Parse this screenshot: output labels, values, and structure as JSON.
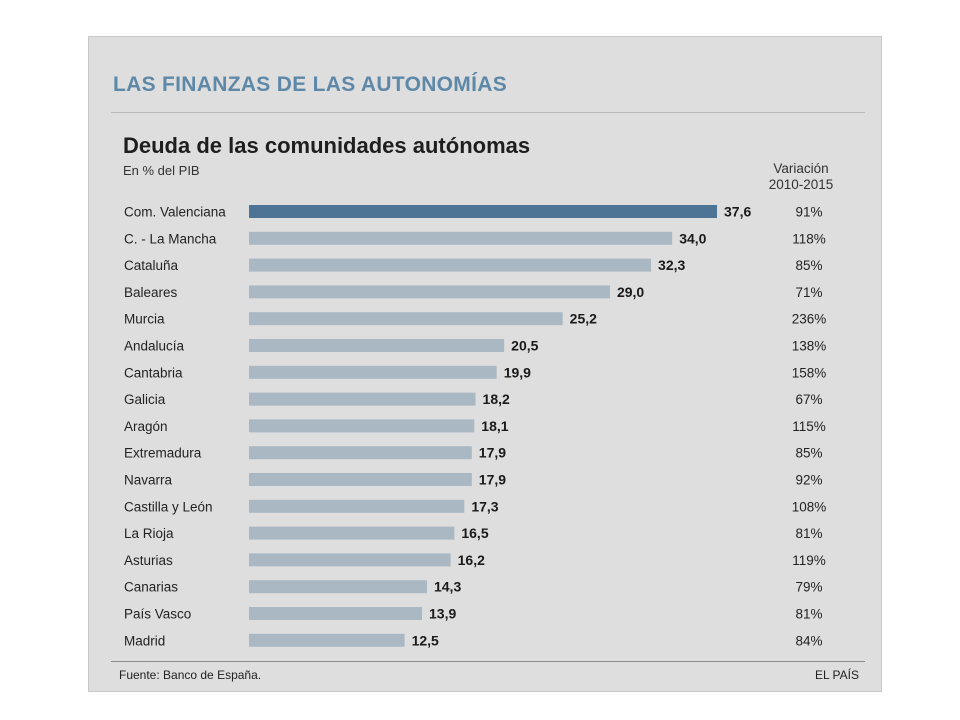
{
  "header": {
    "section_title": "LAS FINANZAS DE LAS AUTONOMÍAS",
    "chart_title": "Deuda de las comunidades autónomas",
    "subtitle": "En % del PIB",
    "variation_header_line1": "Variación",
    "variation_header_line2": "2010-2015"
  },
  "footer": {
    "source": "Fuente: Banco de España.",
    "brand": "EL PAÍS"
  },
  "colors": {
    "highlight_bar": "#4d7494",
    "bar": "#aab8c4",
    "paper": "#dedede",
    "section_title": "#5e88a8"
  },
  "chart_data": {
    "type": "bar",
    "orientation": "horizontal",
    "title": "Deuda de las comunidades autónomas",
    "subtitle": "En % del PIB",
    "categories": [
      "Com. Valenciana",
      "C. - La Mancha",
      "Cataluña",
      "Baleares",
      "Murcia",
      "Andalucía",
      "Cantabria",
      "Galicia",
      "Aragón",
      "Extremadura",
      "Navarra",
      "Castilla y León",
      "La Rioja",
      "Asturias",
      "Canarias",
      "País Vasco",
      "Madrid"
    ],
    "values": [
      37.6,
      34.0,
      32.3,
      29.0,
      25.2,
      20.5,
      19.9,
      18.2,
      18.1,
      17.9,
      17.9,
      17.3,
      16.5,
      16.2,
      14.3,
      13.9,
      12.5
    ],
    "value_labels": [
      "37,6",
      "34,0",
      "32,3",
      "29,0",
      "25,2",
      "20,5",
      "19,9",
      "18,2",
      "18,1",
      "17,9",
      "17,9",
      "17,3",
      "16,5",
      "16,2",
      "14,3",
      "13,9",
      "12,5"
    ],
    "variation_labels": [
      "91%",
      "118%",
      "85%",
      "71%",
      "236%",
      "138%",
      "158%",
      "67%",
      "115%",
      "85%",
      "92%",
      "108%",
      "81%",
      "119%",
      "79%",
      "81%",
      "84%"
    ],
    "highlight_index": 0,
    "xlim": [
      0,
      37.6
    ],
    "grid": false,
    "legend": "none"
  }
}
